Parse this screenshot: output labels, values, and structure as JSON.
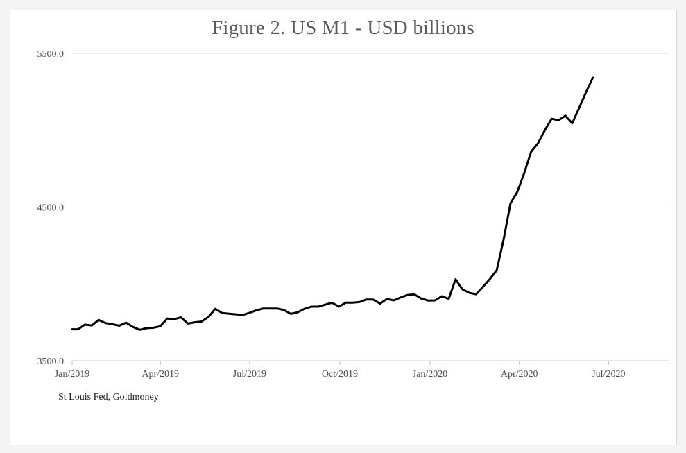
{
  "chart_data": {
    "type": "line",
    "title": "Figure 2. US M1 - USD billions",
    "source": "St Louis Fed, Goldmoney",
    "xlabel": "",
    "ylabel": "",
    "ylim": [
      3500,
      5500
    ],
    "yticks": [
      3500,
      4500,
      5500
    ],
    "ytick_labels": [
      "3500.0",
      "4500.0",
      "5500.0"
    ],
    "xlim": [
      "2019-01-01",
      "2020-09-01"
    ],
    "xticks": [
      "2019-01-01",
      "2019-04-01",
      "2019-07-01",
      "2019-10-01",
      "2020-01-01",
      "2020-04-01",
      "2020-07-01"
    ],
    "xtick_labels": [
      "Jan/2019",
      "Apr/2019",
      "Jul/2019",
      "Oct/2019",
      "Jan/2020",
      "Apr/2020",
      "Jul/2020"
    ],
    "grid": true,
    "series": [
      {
        "color": "#000000",
        "points": [
          [
            "2019-01-01",
            3705
          ],
          [
            "2019-01-07",
            3705
          ],
          [
            "2019-01-14",
            3735
          ],
          [
            "2019-01-21",
            3730
          ],
          [
            "2019-01-28",
            3765
          ],
          [
            "2019-02-04",
            3745
          ],
          [
            "2019-02-11",
            3738
          ],
          [
            "2019-02-18",
            3728
          ],
          [
            "2019-02-25",
            3748
          ],
          [
            "2019-03-04",
            3720
          ],
          [
            "2019-03-11",
            3702
          ],
          [
            "2019-03-18",
            3712
          ],
          [
            "2019-03-25",
            3715
          ],
          [
            "2019-04-01",
            3725
          ],
          [
            "2019-04-08",
            3775
          ],
          [
            "2019-04-15",
            3770
          ],
          [
            "2019-04-22",
            3782
          ],
          [
            "2019-04-29",
            3742
          ],
          [
            "2019-05-06",
            3750
          ],
          [
            "2019-05-13",
            3755
          ],
          [
            "2019-05-20",
            3785
          ],
          [
            "2019-05-27",
            3838
          ],
          [
            "2019-06-03",
            3810
          ],
          [
            "2019-06-10",
            3806
          ],
          [
            "2019-06-17",
            3802
          ],
          [
            "2019-06-24",
            3798
          ],
          [
            "2019-07-01",
            3812
          ],
          [
            "2019-07-08",
            3828
          ],
          [
            "2019-07-15",
            3840
          ],
          [
            "2019-07-22",
            3840
          ],
          [
            "2019-07-29",
            3840
          ],
          [
            "2019-08-05",
            3830
          ],
          [
            "2019-08-12",
            3805
          ],
          [
            "2019-08-19",
            3815
          ],
          [
            "2019-08-26",
            3838
          ],
          [
            "2019-09-02",
            3852
          ],
          [
            "2019-09-09",
            3852
          ],
          [
            "2019-09-16",
            3865
          ],
          [
            "2019-09-23",
            3878
          ],
          [
            "2019-09-30",
            3852
          ],
          [
            "2019-10-07",
            3878
          ],
          [
            "2019-10-14",
            3878
          ],
          [
            "2019-10-21",
            3882
          ],
          [
            "2019-10-28",
            3898
          ],
          [
            "2019-11-04",
            3898
          ],
          [
            "2019-11-11",
            3872
          ],
          [
            "2019-11-18",
            3902
          ],
          [
            "2019-11-25",
            3893
          ],
          [
            "2019-12-02",
            3912
          ],
          [
            "2019-12-09",
            3928
          ],
          [
            "2019-12-16",
            3932
          ],
          [
            "2019-12-23",
            3905
          ],
          [
            "2019-12-30",
            3892
          ],
          [
            "2020-01-06",
            3893
          ],
          [
            "2020-01-13",
            3920
          ],
          [
            "2020-01-20",
            3903
          ],
          [
            "2020-01-27",
            4030
          ],
          [
            "2020-02-03",
            3965
          ],
          [
            "2020-02-10",
            3942
          ],
          [
            "2020-02-17",
            3933
          ],
          [
            "2020-02-24",
            3982
          ],
          [
            "2020-03-02",
            4032
          ],
          [
            "2020-03-09",
            4090
          ],
          [
            "2020-03-16",
            4290
          ],
          [
            "2020-03-23",
            4525
          ],
          [
            "2020-03-30",
            4600
          ],
          [
            "2020-04-06",
            4722
          ],
          [
            "2020-04-13",
            4860
          ],
          [
            "2020-04-20",
            4915
          ],
          [
            "2020-04-27",
            5000
          ],
          [
            "2020-05-04",
            5075
          ],
          [
            "2020-05-11",
            5065
          ],
          [
            "2020-05-18",
            5095
          ],
          [
            "2020-05-25",
            5045
          ],
          [
            "2020-06-01",
            5145
          ],
          [
            "2020-06-08",
            5247
          ],
          [
            "2020-06-15",
            5342
          ]
        ]
      }
    ]
  }
}
